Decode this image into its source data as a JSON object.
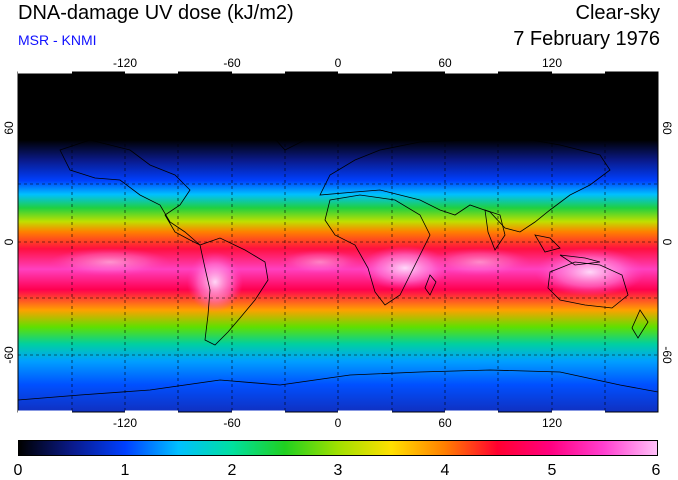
{
  "header": {
    "title": "DNA-damage UV dose (kJ/m2)",
    "credit": "MSR - KNMI",
    "sky": "Clear-sky",
    "date": "7 February 1976"
  },
  "map": {
    "lon_ticks": [
      "-120",
      "-60",
      "0",
      "60",
      "120"
    ],
    "lat_ticks": [
      "60",
      "0",
      "-60"
    ],
    "background_color": "#000000",
    "grid_style": "dashed",
    "coastline_color": "#000000"
  },
  "colorbar": {
    "ticks": [
      "0",
      "1",
      "2",
      "3",
      "4",
      "5",
      "6"
    ],
    "range": [
      0,
      6
    ],
    "unit": "kJ/m2",
    "stops": [
      "#000000",
      "#0a1a8a",
      "#0040ff",
      "#00c0ff",
      "#00e0a0",
      "#20d020",
      "#a0e000",
      "#ffe000",
      "#ff8000",
      "#ff0030",
      "#ff0080",
      "#ff40d0",
      "#ffc0f8"
    ]
  }
}
